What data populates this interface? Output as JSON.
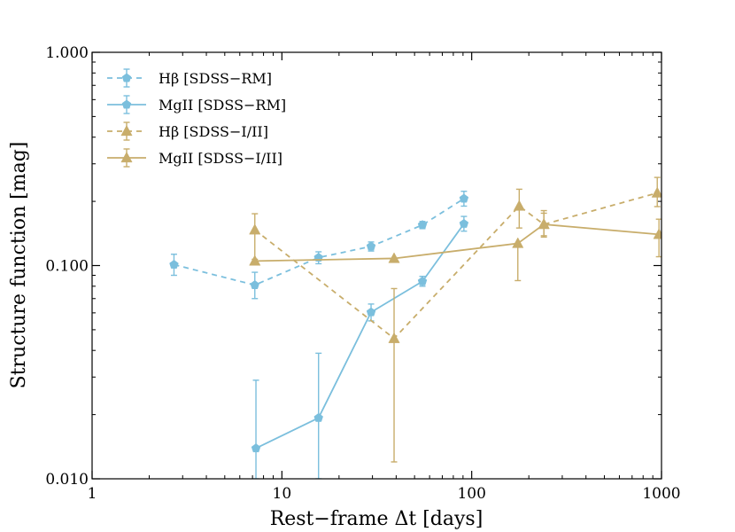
{
  "chart_data": {
    "type": "line",
    "title": "",
    "xlabel": "Rest−frame Δt [days]",
    "ylabel": "Structure function [mag]",
    "xscale": "log",
    "yscale": "log",
    "xlim": [
      1,
      1000
    ],
    "ylim": [
      0.01,
      1.0
    ],
    "x_ticks": [
      1,
      10,
      100,
      1000
    ],
    "x_tick_labels": [
      "1",
      "10",
      "100",
      "1000"
    ],
    "y_ticks": [
      0.01,
      0.1,
      1.0
    ],
    "y_tick_labels": [
      "0.010",
      "0.100",
      "1.000"
    ],
    "legend_position": "top-left",
    "series": [
      {
        "name": "Hβ [SDSS−RM]",
        "color": "#7bbfdd",
        "linestyle": "dashed",
        "marker": "pentagon",
        "x": [
          2.7,
          7.2,
          15.6,
          29.5,
          55.0,
          91.0
        ],
        "y": [
          0.101,
          0.081,
          0.109,
          0.123,
          0.155,
          0.206
        ],
        "err_low": [
          0.011,
          0.011,
          0.007,
          0.006,
          0.006,
          0.016
        ],
        "err_high": [
          0.012,
          0.012,
          0.007,
          0.006,
          0.006,
          0.017
        ]
      },
      {
        "name": "MgII [SDSS−RM]",
        "color": "#7bbfdd",
        "linestyle": "solid",
        "marker": "pentagon",
        "x": [
          7.3,
          15.6,
          29.5,
          55.0,
          91.0
        ],
        "y": [
          0.0139,
          0.0193,
          0.0604,
          0.0843,
          0.157
        ],
        "err_low": [
          0.0039,
          0.0093,
          0.0054,
          0.0043,
          0.012
        ],
        "err_high": [
          0.0151,
          0.0195,
          0.0056,
          0.0047,
          0.013
        ]
      },
      {
        "name": "Hβ [SDSS−I/II]",
        "color": "#c8ad6b",
        "linestyle": "dashed",
        "marker": "triangle",
        "x": [
          7.2,
          39.0,
          178.0,
          240.0,
          950.0
        ],
        "y": [
          0.147,
          0.0455,
          0.19,
          0.156,
          0.219
        ],
        "err_low": [
          0.04,
          0.0335,
          0.04,
          0.02,
          0.03
        ],
        "err_high": [
          0.028,
          0.0325,
          0.038,
          0.025,
          0.04
        ]
      },
      {
        "name": "MgII [SDSS−I/II]",
        "color": "#c8ad6b",
        "linestyle": "solid",
        "marker": "triangle",
        "x": [
          7.2,
          39.0,
          175.0,
          240.0,
          970.0
        ],
        "y": [
          0.105,
          0.108,
          0.127,
          0.156,
          0.14
        ],
        "err_low": [
          0.0,
          0.0,
          0.042,
          0.018,
          0.03
        ],
        "err_high": [
          0.0,
          0.0,
          0.0,
          0.02,
          0.025
        ]
      }
    ]
  }
}
